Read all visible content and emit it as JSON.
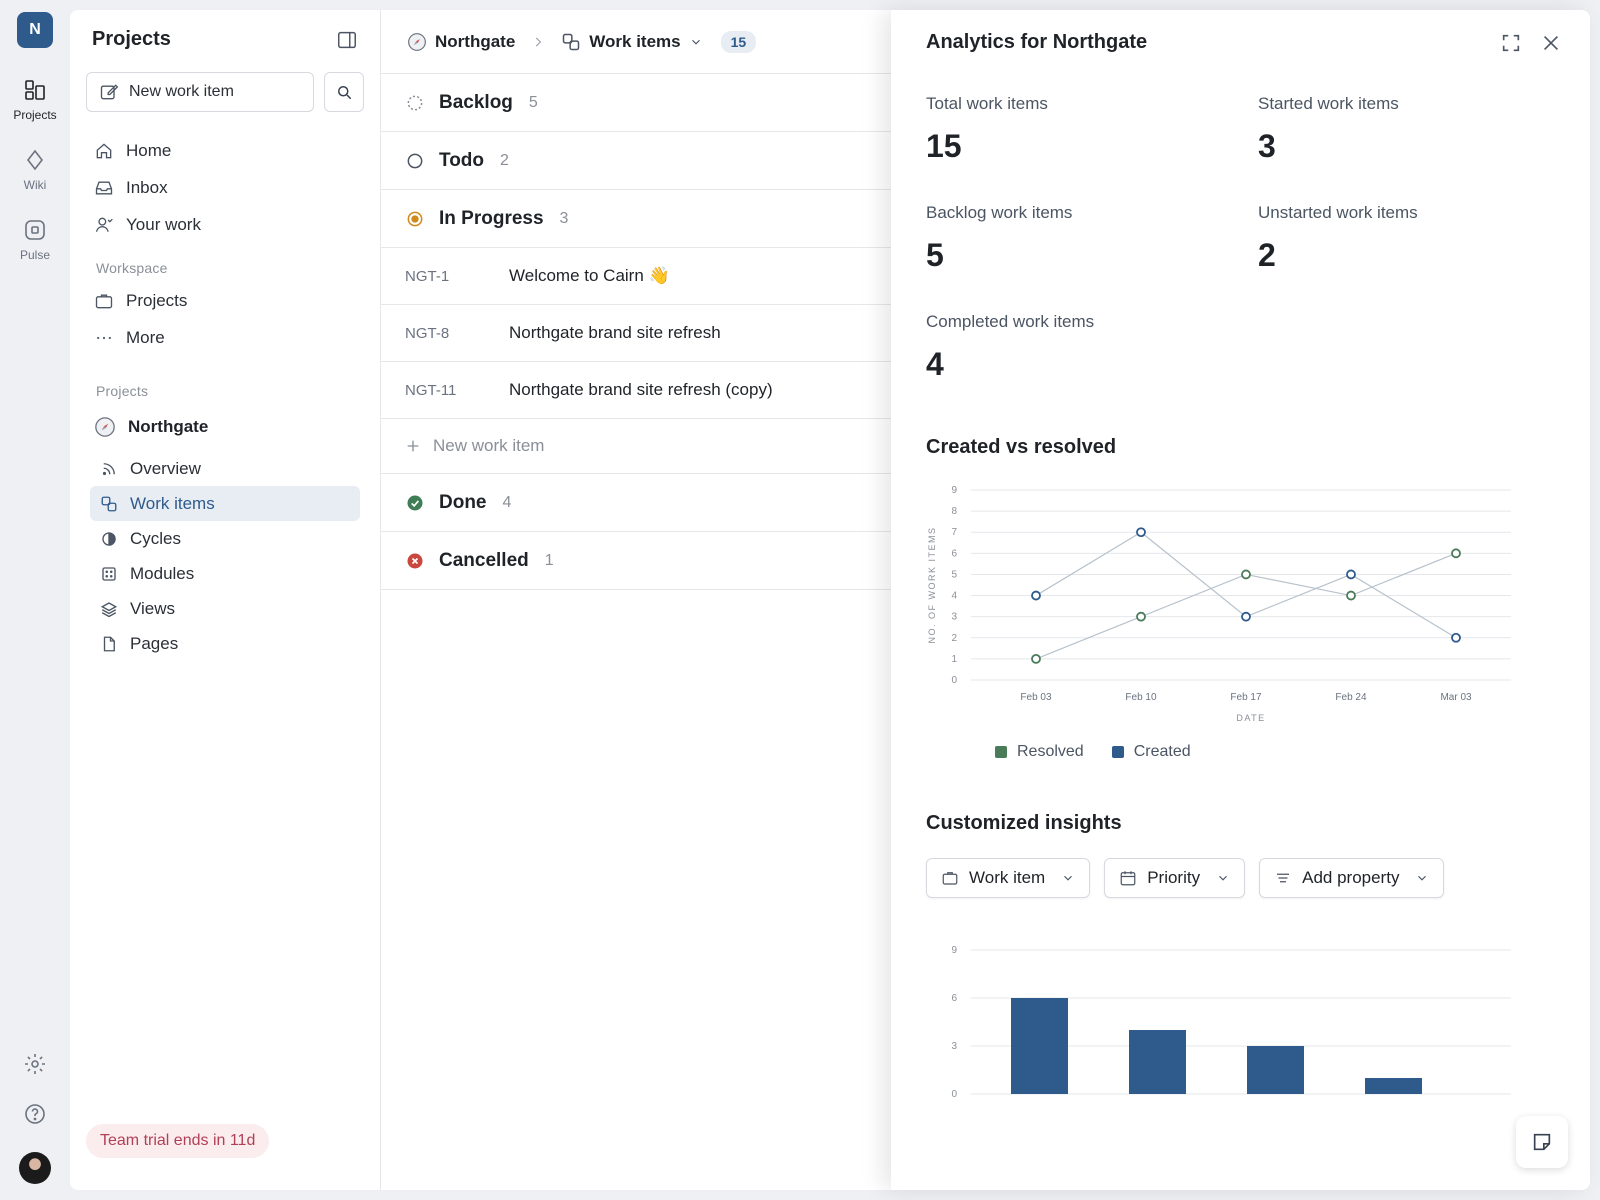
{
  "workspace": {
    "initial": "N"
  },
  "rail": {
    "items": [
      {
        "label": "Projects",
        "icon": "projects-icon"
      },
      {
        "label": "Wiki",
        "icon": "wiki-icon"
      },
      {
        "label": "Pulse",
        "icon": "pulse-icon"
      }
    ]
  },
  "sidebar": {
    "title": "Projects",
    "new_item_label": "New work item",
    "nav": [
      {
        "label": "Home",
        "icon": "home-icon"
      },
      {
        "label": "Inbox",
        "icon": "inbox-icon"
      },
      {
        "label": "Your work",
        "icon": "user-icon"
      }
    ],
    "workspace_label": "Workspace",
    "workspace_items": [
      {
        "label": "Projects",
        "icon": "briefcase-icon"
      },
      {
        "label": "More",
        "icon": "more-icon"
      }
    ],
    "projects_label": "Projects",
    "project_name": "Northgate",
    "project_items": [
      {
        "label": "Overview",
        "icon": "feed-icon"
      },
      {
        "label": "Work items",
        "icon": "work-items-icon",
        "active": true
      },
      {
        "label": "Cycles",
        "icon": "cycles-icon"
      },
      {
        "label": "Modules",
        "icon": "modules-icon"
      },
      {
        "label": "Views",
        "icon": "layers-icon"
      },
      {
        "label": "Pages",
        "icon": "page-icon"
      }
    ],
    "trial_text": "Team trial ends in 11d"
  },
  "main": {
    "breadcrumb_project": "Northgate",
    "breadcrumb_page": "Work items",
    "count": "15",
    "groups": [
      {
        "label": "Backlog",
        "count": "5",
        "icon": "backlog-icon"
      },
      {
        "label": "Todo",
        "count": "2",
        "icon": "todo-icon"
      },
      {
        "label": "In Progress",
        "count": "3",
        "icon": "in-progress-icon"
      }
    ],
    "issues": [
      {
        "id": "NGT-1",
        "title": "Welcome to Cairn 👋"
      },
      {
        "id": "NGT-8",
        "title": "Northgate brand site refresh"
      },
      {
        "id": "NGT-11",
        "title": "Northgate brand site refresh (copy)"
      }
    ],
    "add_label": "New work item",
    "groups_after": [
      {
        "label": "Done",
        "count": "4",
        "icon": "done-icon"
      },
      {
        "label": "Cancelled",
        "count": "1",
        "icon": "cancelled-icon"
      }
    ]
  },
  "panel": {
    "title": "Analytics for Northgate",
    "stats": [
      {
        "label": "Total work items",
        "value": "15"
      },
      {
        "label": "Started work items",
        "value": "3"
      },
      {
        "label": "Backlog work items",
        "value": "5"
      },
      {
        "label": "Unstarted work items",
        "value": "2"
      },
      {
        "label": "Completed work items",
        "value": "4"
      }
    ],
    "chart_title": "Created vs resolved",
    "insights_title": "Customized insights",
    "filters": [
      {
        "label": "Work item",
        "icon": "briefcase-icon"
      },
      {
        "label": "Priority",
        "icon": "calendar-icon"
      },
      {
        "label": "Add property",
        "icon": "list-icon"
      }
    ]
  },
  "colors": {
    "accent": "#2f5a8c",
    "resolved": "#4a7c59",
    "created": "#2f5a8c",
    "trial_bg": "#fbecee",
    "trial_text": "#b23f55"
  },
  "chart_data": [
    {
      "type": "line",
      "title": "Created vs resolved",
      "xlabel": "DATE",
      "ylabel": "NO. OF WORK ITEMS",
      "categories": [
        "Feb 03",
        "Feb 10",
        "Feb 17",
        "Feb 24",
        "Mar 03"
      ],
      "ylim": [
        0,
        9
      ],
      "yticks": [
        0,
        1,
        2,
        3,
        4,
        5,
        6,
        7,
        8,
        9
      ],
      "grid": true,
      "legend": "bottom-left",
      "series": [
        {
          "name": "Resolved",
          "values": [
            1,
            3,
            5,
            4,
            6
          ]
        },
        {
          "name": "Created",
          "values": [
            4,
            7,
            3,
            5,
            2
          ]
        }
      ]
    },
    {
      "type": "bar",
      "title": "",
      "categories": [
        "",
        "",
        "",
        ""
      ],
      "values": [
        6,
        4,
        3,
        1
      ],
      "ylim": [
        0,
        9
      ],
      "yticks": [
        0,
        3,
        6,
        9
      ],
      "grid": true
    }
  ]
}
